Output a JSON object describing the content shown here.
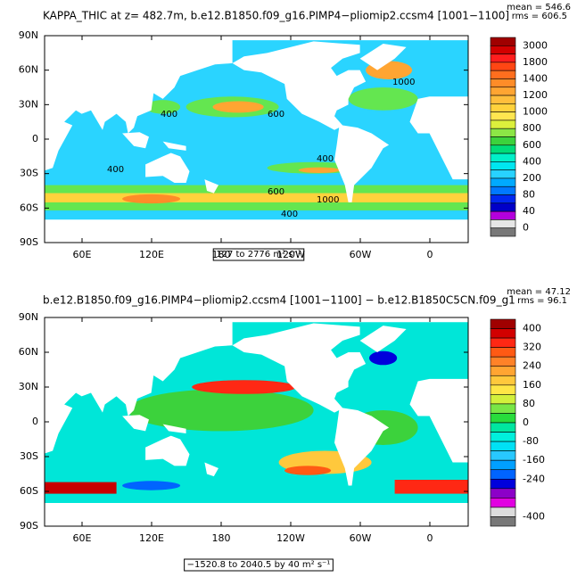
{
  "panels": [
    {
      "title": "KAPPA_THIC at z= 482.7m, b.e12.B1850.f09_g16.PIMP4−pliomip2.ccsm4 [1001−1100]",
      "mean": "mean = 546.6",
      "rms": "rms = 606.5",
      "range_label": "127 to 2776 m² s⁻¹",
      "lat_ticks": [
        "90N",
        "60N",
        "30N",
        "0",
        "30S",
        "60S",
        "90S"
      ],
      "lon_ticks": [
        "60E",
        "120E",
        "180",
        "120W",
        "60W",
        "0"
      ],
      "colorbar": {
        "labels": [
          3000,
          1800,
          1400,
          1200,
          1000,
          800,
          600,
          400,
          200,
          80,
          40,
          0
        ],
        "colors": [
          "#a00000",
          "#d20000",
          "#ff1e1e",
          "#ff4614",
          "#ff6e1e",
          "#ff8c28",
          "#ffa532",
          "#ffbe3c",
          "#ffd23c",
          "#ffe650",
          "#dcf03c",
          "#8ce646",
          "#3cd23c",
          "#00dc78",
          "#00f0c8",
          "#00e6f0",
          "#28d2ff",
          "#00aaff",
          "#0078ff",
          "#0028f0",
          "#0000c8",
          "#b400dc",
          "#e6e6e6",
          "#787878"
        ]
      },
      "contour_labels": [
        "400",
        "600",
        "1000",
        "400",
        "600",
        "400",
        "400",
        "1000"
      ]
    },
    {
      "title": "b.e12.B1850.f09_g16.PIMP4−pliomip2.ccsm4 [1001−1100] − b.e12.B1850C5CN.f09_g1",
      "mean": "mean = 47.12",
      "rms": "rms = 96.1",
      "range_label": "−1520.8 to 2040.5 by 40 m² s⁻¹",
      "lat_ticks": [
        "90N",
        "60N",
        "30N",
        "0",
        "30S",
        "60S",
        "90S"
      ],
      "lon_ticks": [
        "60E",
        "120E",
        "180",
        "120W",
        "60W",
        "0"
      ],
      "colorbar": {
        "labels": [
          400,
          320,
          240,
          160,
          80,
          0,
          -80,
          -160,
          -240,
          null,
          -400
        ],
        "colors": [
          "#a00000",
          "#d20000",
          "#ff2814",
          "#ff5a14",
          "#ff8228",
          "#ffa532",
          "#ffc83c",
          "#ffe646",
          "#d2f03c",
          "#78e646",
          "#28dc3c",
          "#00e6a0",
          "#00f0dc",
          "#00e1f5",
          "#28c8ff",
          "#00a0ff",
          "#0064ff",
          "#0000dc",
          "#8c00c8",
          "#e100e1",
          "#dcdcdc",
          "#787878"
        ]
      }
    }
  ]
}
